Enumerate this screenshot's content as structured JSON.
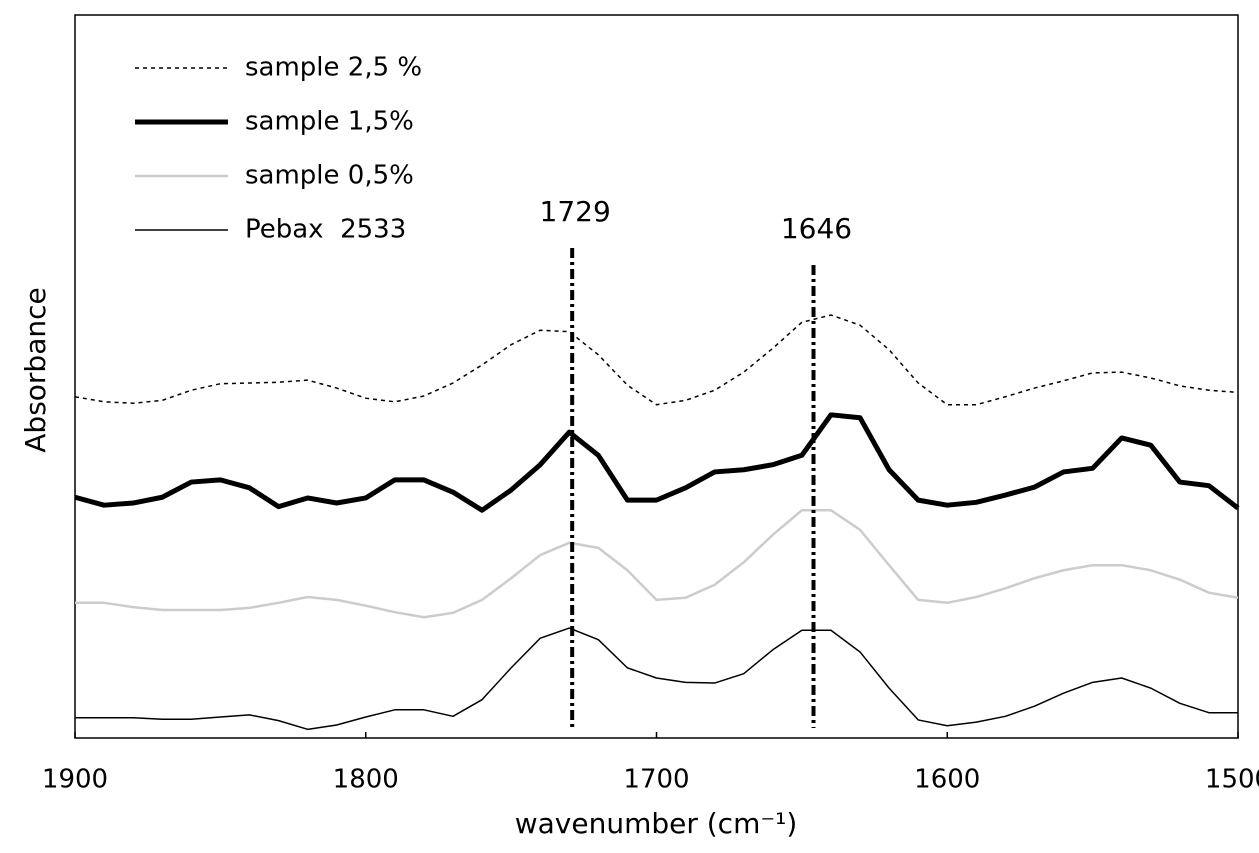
{
  "chart_data": {
    "type": "line",
    "x_label": "wavenumber (cm⁻¹)",
    "y_label": "Absorbance",
    "xlim": [
      1900,
      1500
    ],
    "ylim": [
      0,
      100
    ],
    "xticks": [
      1900,
      1800,
      1700,
      1600,
      1500
    ],
    "grid": false,
    "legend": "upper left",
    "annotations": [
      1729,
      1646
    ],
    "x": [
      1900,
      1890,
      1880,
      1870,
      1860,
      1850,
      1840,
      1830,
      1820,
      1810,
      1800,
      1790,
      1780,
      1770,
      1760,
      1750,
      1740,
      1730,
      1720,
      1710,
      1700,
      1690,
      1680,
      1670,
      1660,
      1650,
      1640,
      1630,
      1620,
      1610,
      1600,
      1590,
      1580,
      1570,
      1560,
      1550,
      1540,
      1530,
      1520,
      1510,
      1500
    ],
    "series": [
      {
        "name": "sample 2,5 %",
        "color": "#000000",
        "width": 1.5,
        "dash": "dotted",
        "values": [
          47.2,
          46.5,
          46.3,
          46.7,
          48.1,
          49.0,
          49.1,
          49.2,
          49.5,
          48.4,
          47.0,
          46.5,
          47.3,
          49.1,
          51.6,
          54.4,
          56.4,
          56.2,
          53.0,
          48.8,
          46.1,
          46.7,
          48.1,
          50.6,
          53.9,
          57.5,
          58.5,
          57.1,
          53.7,
          49.1,
          46.1,
          46.1,
          47.2,
          48.4,
          49.4,
          50.5,
          50.6,
          49.8,
          48.7,
          48.1,
          47.8
        ]
      },
      {
        "name": "sample 1,5%",
        "color": "#000000",
        "width": 5,
        "dash": "solid",
        "values": [
          33.3,
          32.2,
          32.5,
          33.3,
          35.4,
          35.7,
          34.6,
          32.0,
          33.2,
          32.5,
          33.2,
          35.7,
          35.7,
          34.0,
          31.5,
          34.3,
          37.8,
          42.3,
          39.1,
          32.9,
          32.9,
          34.6,
          36.8,
          37.1,
          37.8,
          39.1,
          44.7,
          44.3,
          37.1,
          32.9,
          32.2,
          32.6,
          33.6,
          34.7,
          36.8,
          37.3,
          41.5,
          40.5,
          35.4,
          34.9,
          31.8
        ]
      },
      {
        "name": "sample 0,5%",
        "color": "#cccccc",
        "width": 2.5,
        "dash": "solid",
        "values": [
          18.7,
          18.7,
          18.1,
          17.7,
          17.7,
          17.7,
          18.0,
          18.7,
          19.5,
          19.1,
          18.3,
          17.4,
          16.7,
          17.3,
          19.1,
          22.1,
          25.3,
          27.0,
          26.3,
          23.2,
          19.1,
          19.4,
          21.2,
          24.3,
          28.1,
          31.5,
          31.5,
          28.8,
          23.9,
          19.1,
          18.7,
          19.5,
          20.7,
          22.1,
          23.2,
          23.9,
          23.9,
          23.2,
          21.9,
          20.1,
          19.4
        ]
      },
      {
        "name": "Pebax  2533",
        "color": "#000000",
        "width": 1.5,
        "dash": "solid",
        "values": [
          2.8,
          2.8,
          2.8,
          2.6,
          2.6,
          2.9,
          3.2,
          2.4,
          1.2,
          1.8,
          2.9,
          3.9,
          3.9,
          3.0,
          5.3,
          9.7,
          13.8,
          15.2,
          13.6,
          9.7,
          8.3,
          7.7,
          7.6,
          8.9,
          12.2,
          14.9,
          14.9,
          11.9,
          6.9,
          2.5,
          1.7,
          2.2,
          3.0,
          4.4,
          6.2,
          7.7,
          8.3,
          6.9,
          4.8,
          3.5,
          3.5
        ]
      }
    ]
  }
}
